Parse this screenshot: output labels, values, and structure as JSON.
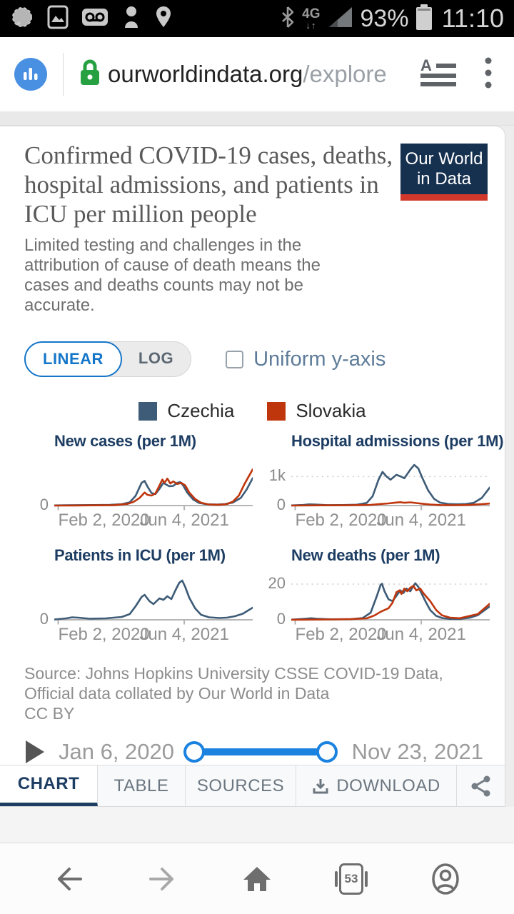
{
  "colors": {
    "accent_blue": "#1576c9",
    "slider_blue": "#1b82e0",
    "navy": "#1d3d63",
    "logo_navy": "#16304f",
    "logo_red": "#d0382b",
    "lock_green": "#27a042",
    "favicon_blue": "#4a90e2",
    "czechia": "#3e5c77",
    "slovakia": "#bf360c"
  },
  "status_bar": {
    "time": "11:10",
    "battery_percent": "93%",
    "network": "4G",
    "left_icons": [
      "messenger-icon",
      "gallery-icon",
      "voicemail-icon",
      "contact-icon",
      "location-icon"
    ]
  },
  "browser": {
    "url_domain": "ourworldindata.org",
    "url_path": "/explore"
  },
  "page": {
    "title": "Confirmed COVID-19 cases, deaths, hospital admissions, and patients in ICU per million people",
    "subtitle": "Limited testing and challenges in the attribution of cause of death means the cases and deaths counts may not be accurate.",
    "logo_line1": "Our World",
    "logo_line2": "in Data"
  },
  "controls": {
    "linear": "LINEAR",
    "log": "LOG",
    "uniform_label": "Uniform y-axis",
    "uniform_checked": false
  },
  "legend": {
    "items": [
      {
        "label": "Czechia",
        "color": "#3e5c77"
      },
      {
        "label": "Slovakia",
        "color": "#bf360c"
      }
    ]
  },
  "chart_data": [
    {
      "type": "line",
      "title": "New cases (per 1M)",
      "x_ticks": [
        "Feb 2, 2020",
        "Jun 4, 2021"
      ],
      "x_tick_pos": [
        0.02,
        0.655
      ],
      "ymax": 2000,
      "y_zero_label": "0",
      "y_gridline": null,
      "series": [
        {
          "name": "Czechia",
          "points": [
            [
              0,
              5
            ],
            [
              0.06,
              12
            ],
            [
              0.12,
              18
            ],
            [
              0.2,
              22
            ],
            [
              0.28,
              30
            ],
            [
              0.34,
              60
            ],
            [
              0.38,
              140
            ],
            [
              0.41,
              420
            ],
            [
              0.44,
              980
            ],
            [
              0.455,
              1060
            ],
            [
              0.47,
              820
            ],
            [
              0.49,
              540
            ],
            [
              0.51,
              500
            ],
            [
              0.53,
              720
            ],
            [
              0.55,
              980
            ],
            [
              0.565,
              900
            ],
            [
              0.58,
              830
            ],
            [
              0.6,
              850
            ],
            [
              0.62,
              980
            ],
            [
              0.635,
              1010
            ],
            [
              0.65,
              860
            ],
            [
              0.67,
              560
            ],
            [
              0.7,
              260
            ],
            [
              0.73,
              110
            ],
            [
              0.77,
              55
            ],
            [
              0.82,
              45
            ],
            [
              0.86,
              65
            ],
            [
              0.9,
              130
            ],
            [
              0.94,
              330
            ],
            [
              0.97,
              700
            ],
            [
              1,
              1180
            ]
          ]
        },
        {
          "name": "Slovakia",
          "points": [
            [
              0,
              1
            ],
            [
              0.1,
              4
            ],
            [
              0.2,
              8
            ],
            [
              0.3,
              18
            ],
            [
              0.37,
              70
            ],
            [
              0.4,
              160
            ],
            [
              0.43,
              330
            ],
            [
              0.455,
              560
            ],
            [
              0.47,
              460
            ],
            [
              0.49,
              430
            ],
            [
              0.51,
              520
            ],
            [
              0.53,
              860
            ],
            [
              0.545,
              1120
            ],
            [
              0.555,
              980
            ],
            [
              0.57,
              1160
            ],
            [
              0.585,
              950
            ],
            [
              0.6,
              1040
            ],
            [
              0.62,
              930
            ],
            [
              0.64,
              980
            ],
            [
              0.66,
              870
            ],
            [
              0.68,
              560
            ],
            [
              0.71,
              280
            ],
            [
              0.74,
              120
            ],
            [
              0.78,
              45
            ],
            [
              0.83,
              35
            ],
            [
              0.87,
              60
            ],
            [
              0.9,
              170
            ],
            [
              0.93,
              430
            ],
            [
              0.96,
              950
            ],
            [
              1,
              1560
            ]
          ]
        }
      ]
    },
    {
      "type": "line",
      "title": "Hospital admissions (per 1M)",
      "x_ticks": [
        "Feb 2, 2020",
        "Jun 4, 2021"
      ],
      "x_tick_pos": [
        0.02,
        0.655
      ],
      "ymax": 1600,
      "y_zero_label": "0",
      "y_gridline": {
        "value": 1000,
        "label": "1k"
      },
      "series": [
        {
          "name": "Czechia",
          "points": [
            [
              0,
              4
            ],
            [
              0.06,
              20
            ],
            [
              0.09,
              42
            ],
            [
              0.12,
              34
            ],
            [
              0.18,
              14
            ],
            [
              0.26,
              16
            ],
            [
              0.33,
              30
            ],
            [
              0.38,
              90
            ],
            [
              0.41,
              320
            ],
            [
              0.44,
              900
            ],
            [
              0.46,
              1160
            ],
            [
              0.48,
              1000
            ],
            [
              0.5,
              890
            ],
            [
              0.53,
              1060
            ],
            [
              0.55,
              1010
            ],
            [
              0.57,
              940
            ],
            [
              0.6,
              1240
            ],
            [
              0.62,
              1400
            ],
            [
              0.64,
              1280
            ],
            [
              0.66,
              960
            ],
            [
              0.69,
              520
            ],
            [
              0.72,
              230
            ],
            [
              0.75,
              100
            ],
            [
              0.79,
              55
            ],
            [
              0.84,
              45
            ],
            [
              0.88,
              55
            ],
            [
              0.92,
              95
            ],
            [
              0.96,
              260
            ],
            [
              1,
              620
            ]
          ]
        },
        {
          "name": "Slovakia",
          "points": [
            [
              0,
              1
            ],
            [
              0.15,
              8
            ],
            [
              0.3,
              12
            ],
            [
              0.4,
              25
            ],
            [
              0.45,
              55
            ],
            [
              0.49,
              75
            ],
            [
              0.52,
              95
            ],
            [
              0.55,
              115
            ],
            [
              0.57,
              95
            ],
            [
              0.6,
              110
            ],
            [
              0.63,
              85
            ],
            [
              0.66,
              65
            ],
            [
              0.7,
              38
            ],
            [
              0.75,
              18
            ],
            [
              0.82,
              12
            ],
            [
              0.9,
              22
            ],
            [
              0.95,
              45
            ],
            [
              1,
              70
            ]
          ]
        }
      ]
    },
    {
      "type": "line",
      "title": "Patients in ICU (per 1M)",
      "x_ticks": [
        "Feb 2, 2020",
        "Jun 4, 2021"
      ],
      "x_tick_pos": [
        0.02,
        0.655
      ],
      "ymax": 130,
      "y_zero_label": "0",
      "y_gridline": null,
      "series": [
        {
          "name": "Czechia",
          "points": [
            [
              0,
              1
            ],
            [
              0.06,
              4
            ],
            [
              0.09,
              7
            ],
            [
              0.12,
              6
            ],
            [
              0.18,
              3
            ],
            [
              0.26,
              4
            ],
            [
              0.34,
              8
            ],
            [
              0.38,
              16
            ],
            [
              0.41,
              38
            ],
            [
              0.44,
              64
            ],
            [
              0.455,
              70
            ],
            [
              0.48,
              52
            ],
            [
              0.5,
              44
            ],
            [
              0.53,
              60
            ],
            [
              0.55,
              56
            ],
            [
              0.57,
              66
            ],
            [
              0.59,
              58
            ],
            [
              0.61,
              82
            ],
            [
              0.63,
              104
            ],
            [
              0.645,
              110
            ],
            [
              0.66,
              92
            ],
            [
              0.68,
              62
            ],
            [
              0.71,
              32
            ],
            [
              0.74,
              14
            ],
            [
              0.78,
              7
            ],
            [
              0.83,
              5
            ],
            [
              0.87,
              6
            ],
            [
              0.91,
              10
            ],
            [
              0.95,
              17
            ],
            [
              1,
              34
            ]
          ]
        }
      ]
    },
    {
      "type": "line",
      "title": "New deaths (per 1M)",
      "x_ticks": [
        "Feb 2, 2020",
        "Jun 4, 2021"
      ],
      "x_tick_pos": [
        0.02,
        0.655
      ],
      "ymax": 26,
      "y_zero_label": "0",
      "y_gridline": {
        "value": 20,
        "label": "20"
      },
      "series": [
        {
          "name": "Czechia",
          "points": [
            [
              0,
              0.1
            ],
            [
              0.07,
              0.6
            ],
            [
              0.1,
              0.9
            ],
            [
              0.13,
              0.6
            ],
            [
              0.2,
              0.3
            ],
            [
              0.3,
              0.4
            ],
            [
              0.36,
              1
            ],
            [
              0.4,
              4
            ],
            [
              0.43,
              13
            ],
            [
              0.45,
              19.5
            ],
            [
              0.457,
              20.2
            ],
            [
              0.47,
              16
            ],
            [
              0.49,
              11.5
            ],
            [
              0.51,
              10.5
            ],
            [
              0.53,
              13.5
            ],
            [
              0.55,
              16.5
            ],
            [
              0.565,
              15
            ],
            [
              0.58,
              17.5
            ],
            [
              0.6,
              16
            ],
            [
              0.615,
              19
            ],
            [
              0.625,
              20.5
            ],
            [
              0.64,
              18.5
            ],
            [
              0.66,
              14
            ],
            [
              0.68,
              9.5
            ],
            [
              0.7,
              5.5
            ],
            [
              0.73,
              2.2
            ],
            [
              0.76,
              1
            ],
            [
              0.8,
              0.5
            ],
            [
              0.85,
              0.5
            ],
            [
              0.9,
              1.2
            ],
            [
              0.94,
              2.6
            ],
            [
              1,
              7.5
            ]
          ]
        },
        {
          "name": "Slovakia",
          "points": [
            [
              0,
              0.05
            ],
            [
              0.2,
              0.2
            ],
            [
              0.3,
              0.4
            ],
            [
              0.38,
              0.8
            ],
            [
              0.42,
              2.5
            ],
            [
              0.45,
              4.5
            ],
            [
              0.47,
              5.5
            ],
            [
              0.49,
              6.5
            ],
            [
              0.51,
              9.5
            ],
            [
              0.53,
              15.5
            ],
            [
              0.545,
              16.5
            ],
            [
              0.555,
              14.5
            ],
            [
              0.57,
              17.5
            ],
            [
              0.585,
              16
            ],
            [
              0.6,
              18
            ],
            [
              0.615,
              19
            ],
            [
              0.63,
              16.5
            ],
            [
              0.65,
              17.5
            ],
            [
              0.665,
              15
            ],
            [
              0.68,
              13
            ],
            [
              0.7,
              10.5
            ],
            [
              0.73,
              5.5
            ],
            [
              0.76,
              2.5
            ],
            [
              0.8,
              1.2
            ],
            [
              0.85,
              0.9
            ],
            [
              0.9,
              2.2
            ],
            [
              0.94,
              3.2
            ],
            [
              1,
              9
            ]
          ]
        }
      ]
    }
  ],
  "attribution": {
    "source": "Source: Johns Hopkins University CSSE COVID-19 Data, Official data collated by Our World in Data",
    "license": "CC BY"
  },
  "timeline": {
    "start": "Jan 6, 2020",
    "end": "Nov 23, 2021"
  },
  "tabs": {
    "chart": "CHART",
    "table": "TABLE",
    "sources": "SOURCES",
    "download": "DOWNLOAD",
    "active": "CHART"
  },
  "nav": {
    "tab_count": "53"
  }
}
